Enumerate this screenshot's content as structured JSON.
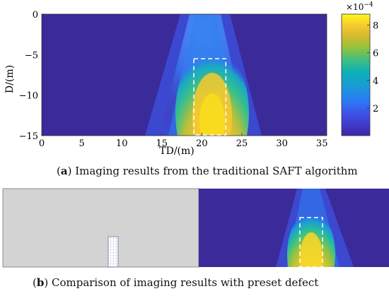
{
  "panel_a": {
    "caption_letter": "a",
    "caption_text": "Imaging results from the traditional SAFT algorithm"
  },
  "panel_b": {
    "caption_letter": "b",
    "caption_text": "Comparison of imaging results with preset defect"
  },
  "colors": {
    "background_purple": "#3b2a9a",
    "accent_yellow": "#f6e21a",
    "defect_box_stroke": "#ffffff",
    "preset_panel_gray": "#d3d3d3"
  },
  "chart_data": {
    "type": "heatmap",
    "xlabel": "TD/(m)",
    "ylabel": "D/(m)",
    "xlim": [
      0,
      35
    ],
    "ylim": [
      -15,
      0
    ],
    "xticks": [
      0,
      5,
      10,
      15,
      20,
      25,
      30,
      35
    ],
    "yticks": [
      0,
      -5,
      -10,
      -15
    ],
    "colorbar": {
      "exponent_label": "×10",
      "exponent_power": "−4",
      "ticks": [
        2,
        4,
        6,
        8
      ],
      "range": [
        0,
        8.8
      ],
      "colormap": "parula"
    },
    "defect_box": {
      "x_range": [
        19,
        23
      ],
      "y_range": [
        -15,
        -5.5
      ]
    },
    "peak": {
      "x": 20.8,
      "depth_range": [
        -15,
        -8
      ],
      "max_value": 8.8
    },
    "preset_defect": {
      "x_range": [
        19.5,
        22.5
      ],
      "depth_range": [
        -15,
        -10
      ]
    }
  }
}
